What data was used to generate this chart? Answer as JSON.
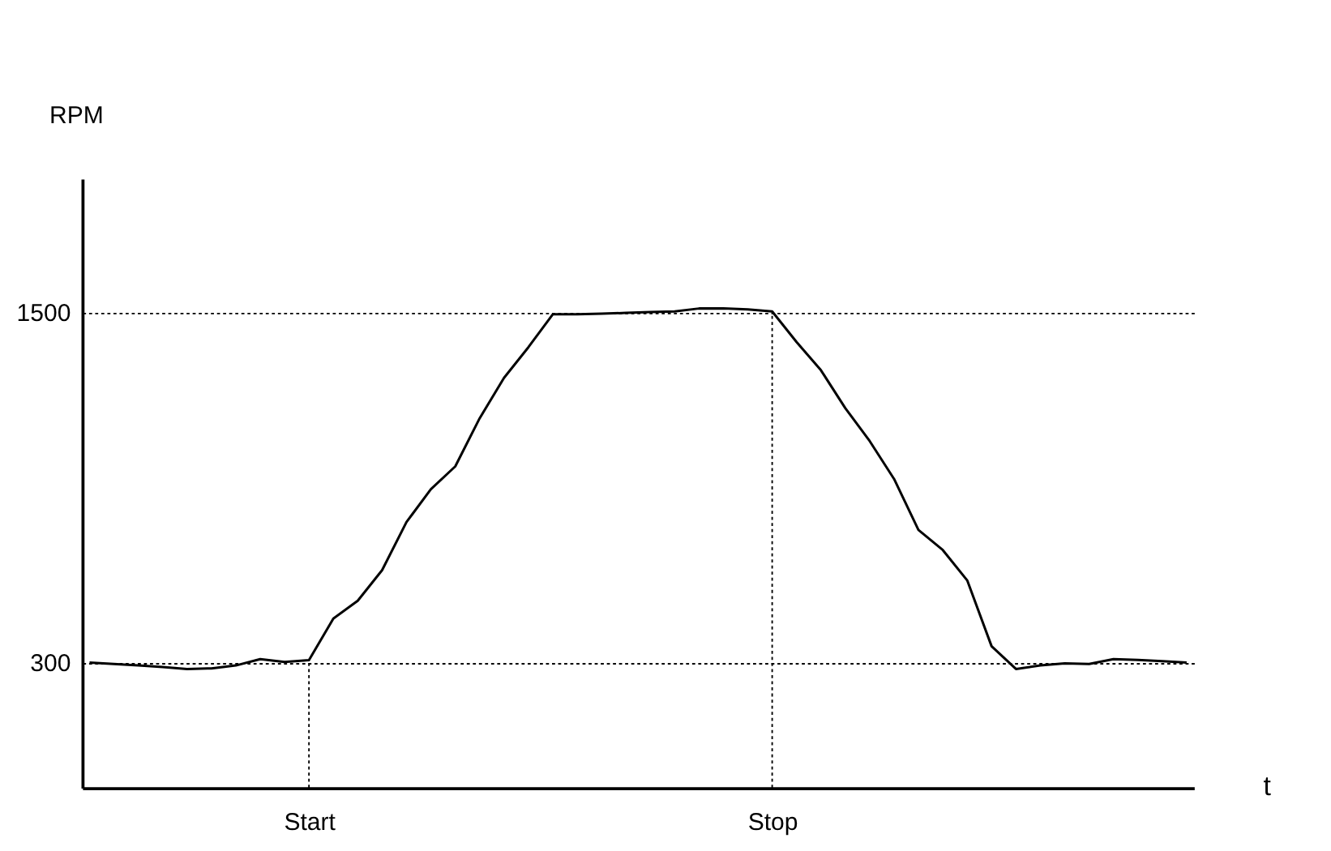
{
  "chart_data": {
    "type": "line",
    "xlabel": "t",
    "ylabel": "RPM",
    "categories": [
      null,
      null,
      null,
      null,
      null,
      null,
      null,
      null,
      null,
      "Start",
      null,
      null,
      null,
      null,
      null,
      null,
      null,
      null,
      null,
      null,
      null,
      null,
      null,
      null,
      null,
      null,
      null,
      null,
      "Stop",
      null,
      null,
      null,
      null,
      null,
      null,
      null,
      null,
      null,
      null,
      null,
      null,
      null,
      null,
      null,
      null,
      null
    ],
    "series": [
      {
        "color": "#000000",
        "values": [
          300,
          295,
          290,
          285,
          278,
          280,
          290,
          312,
          302,
          308,
          451,
          512,
          617,
          782,
          895,
          973,
          1138,
          1277,
          1382,
          1495,
          1495,
          1497,
          1500,
          1503,
          1505,
          1515,
          1515,
          1512,
          1505,
          1400,
          1303,
          1173,
          1060,
          930,
          755,
          686,
          582,
          356,
          278,
          290,
          297,
          295,
          312,
          309,
          305,
          300
        ]
      }
    ],
    "ylim": [
      -130,
      1960
    ],
    "yticks": [
      300,
      1500
    ],
    "grid": "y",
    "marker": "none",
    "line_style": "solid",
    "ref_lines": [
      {
        "axis": "x",
        "value": "Start",
        "line_style": "dotted"
      },
      {
        "axis": "x",
        "value": "Stop",
        "line_style": "dotted"
      }
    ]
  }
}
